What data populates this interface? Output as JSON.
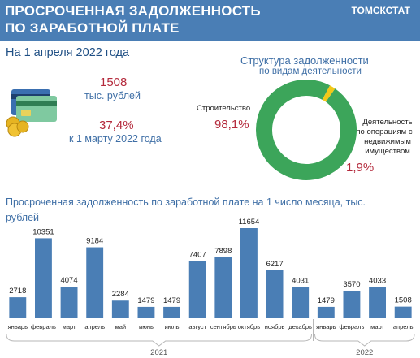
{
  "header": {
    "title_line1": "ПРОСРОЧЕННАЯ ЗАДОЛЖЕННОСТЬ",
    "title_line2": "ПО ЗАРАБОТНОЙ ПЛАТЕ",
    "brand": "ТОМСКСТАТ"
  },
  "summary": {
    "date": "На 1 апреля  2022 года",
    "amount_value": "1508",
    "amount_unit": "тыс. рублей",
    "ratio_value": "37,4%",
    "ratio_caption": "к 1 марту 2022 года",
    "icon": "credit-cards-and-coins-icon"
  },
  "structure": {
    "title": "Структура задолженности",
    "subtitle": "по видам деятельности",
    "segments": [
      {
        "label": "Строительство",
        "value": "98,1%",
        "share": 98.1,
        "color": "#3ca55a"
      },
      {
        "label_lines": [
          "Деятельность",
          "по операциям  с",
          "недвижимым",
          "имуществом"
        ],
        "value": "1,9%",
        "share": 1.9,
        "color": "#f2c818"
      }
    ]
  },
  "chart_data": {
    "type": "bar",
    "title": "Просроченная задолженность по заработной плате на 1 число месяца, тыс. рублей",
    "categories": [
      "январь",
      "февраль",
      "март",
      "апрель",
      "май",
      "июнь",
      "июль",
      "август",
      "сентябрь",
      "октябрь",
      "ноябрь",
      "декабрь",
      "январь",
      "февраль",
      "март",
      "апрель"
    ],
    "values": [
      2718,
      10351,
      4074,
      9184,
      2284,
      1479,
      1479,
      7407,
      7898,
      11654,
      6217,
      4031,
      1479,
      3570,
      4033,
      1508
    ],
    "value_labels": [
      "2718",
      "10351",
      "4074",
      "9184",
      "2284",
      "1479",
      "1479",
      "7407",
      "7898",
      "11654",
      "6217",
      "4031",
      "1479",
      "3570",
      "4033",
      "1508"
    ],
    "years": [
      {
        "label": "2021",
        "from": 0,
        "to": 11
      },
      {
        "label": "2022",
        "from": 12,
        "to": 15
      }
    ],
    "bar_color": "#4a7eb5",
    "ylim": [
      0,
      12000
    ],
    "grid": false
  }
}
